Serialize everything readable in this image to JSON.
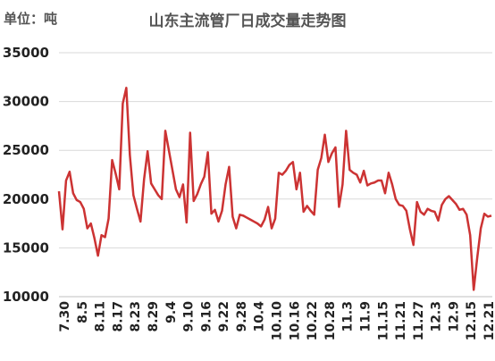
{
  "chart_data": {
    "type": "line",
    "title": "山东主流管厂日成交量走势图",
    "unit_label": "单位：吨",
    "ylim": [
      10000,
      35000
    ],
    "yticks": [
      10000,
      15000,
      20000,
      25000,
      30000,
      35000
    ],
    "xlabels": [
      "7.30",
      "8.5",
      "8.11",
      "8.17",
      "8.23",
      "8.29",
      "9.4",
      "9.10",
      "9.16",
      "9.22",
      "9.28",
      "10.4",
      "10.10",
      "10.16",
      "10.22",
      "10.28",
      "11.3",
      "11.9",
      "11.15",
      "11.21",
      "11.27",
      "12.3",
      "12.9",
      "12.15",
      "12.21"
    ],
    "grid": "horizontal",
    "line_color": "#cc3333",
    "series": [
      {
        "values": [
          20800,
          16900,
          21900,
          22800,
          20600,
          19900,
          19700,
          19000,
          17000,
          17500,
          16000,
          14200,
          16300,
          16100,
          18000,
          24000,
          22600,
          21000,
          29800,
          31400,
          24500,
          20400,
          19000,
          17700,
          22000,
          24900,
          21600,
          21000,
          20400,
          20000,
          27000,
          25000,
          23000,
          21000,
          20200,
          21500,
          17600,
          26800,
          19800,
          20500,
          21500,
          22300,
          24800,
          18500,
          18900,
          17700,
          18800,
          21500,
          23300,
          18200,
          17000,
          18400,
          18300,
          18100,
          17900,
          17700,
          17500,
          17200,
          17900,
          19200,
          17000,
          18000,
          22700,
          22500,
          22900,
          23500,
          23800,
          21000,
          22700,
          18700,
          19300,
          18800,
          18400,
          23000,
          24200,
          26600,
          23800,
          24700,
          25300,
          19200,
          21500,
          27000,
          23000,
          22700,
          22500,
          21700,
          22900,
          21400,
          21600,
          21700,
          21900,
          21900,
          20600,
          22700,
          21500,
          20000,
          19400,
          19300,
          18800,
          16900,
          15300,
          19700,
          18700,
          18400,
          19000,
          18800,
          18700,
          17800,
          19400,
          20000,
          20300,
          19900,
          19500,
          18900,
          19000,
          18400,
          16300,
          10700,
          14000,
          17000,
          18500,
          18200,
          18300
        ]
      }
    ]
  }
}
